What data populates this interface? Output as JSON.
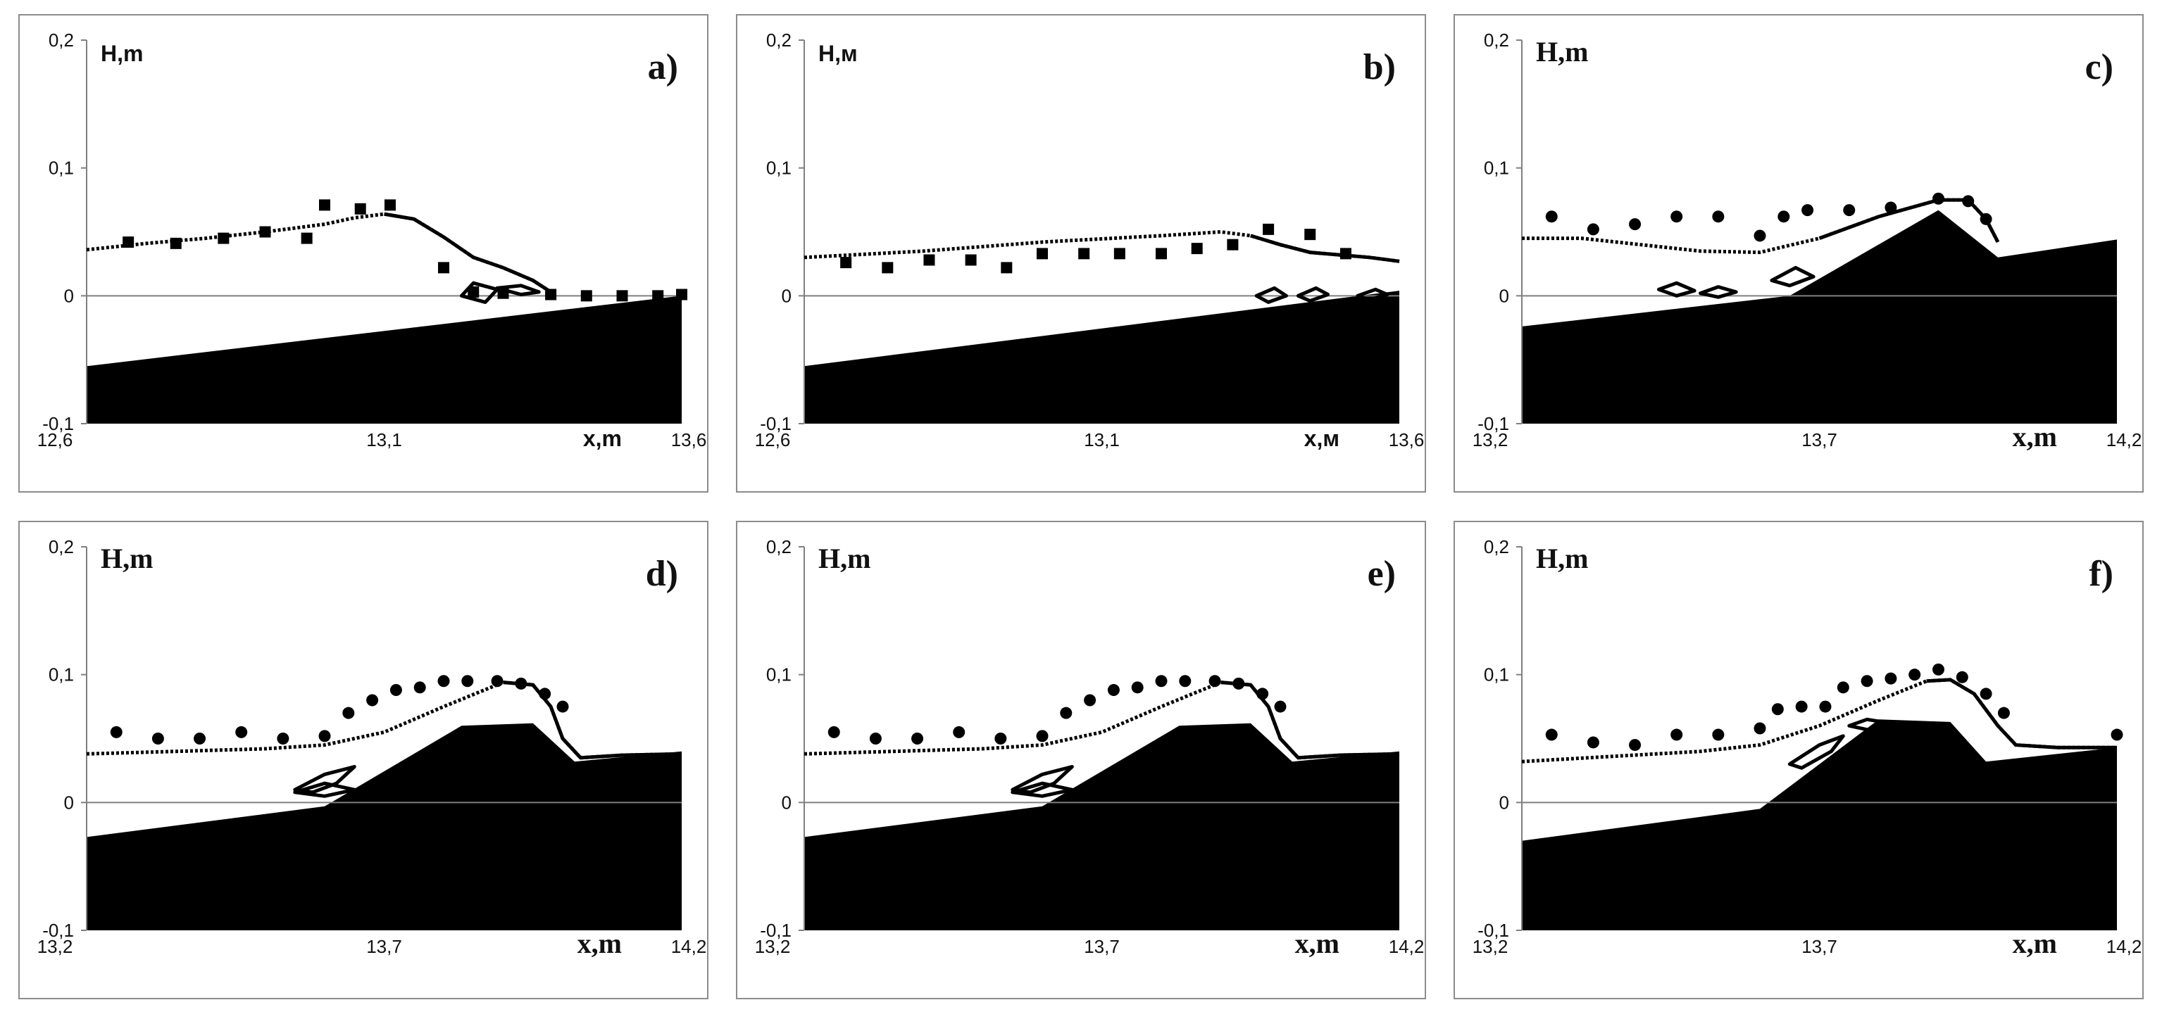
{
  "colors": {
    "ground": "#000000",
    "axis": "#7f7f7f",
    "text": "#111111",
    "marker": "#000000"
  },
  "chart_data": [
    {
      "type": "line",
      "panel_label": "a)",
      "ylabel": "H,m",
      "xlabel": "x,m",
      "title_style": "sans",
      "xlim": [
        12.6,
        13.6
      ],
      "ylim": [
        -0.1,
        0.2
      ],
      "x_ticks": [
        "12,6",
        "13,1",
        "13,6"
      ],
      "y_ticks": [
        "0,2",
        "0,1",
        "0",
        "-0,1"
      ],
      "marker": "square",
      "bottom": [
        [
          12.6,
          -0.055
        ],
        [
          13.6,
          0.0
        ]
      ],
      "computed_surface": [
        [
          12.6,
          0.036
        ],
        [
          12.7,
          0.041
        ],
        [
          12.8,
          0.045
        ],
        [
          12.9,
          0.05
        ],
        [
          13.0,
          0.056
        ],
        [
          13.05,
          0.061
        ],
        [
          13.1,
          0.064
        ],
        [
          13.15,
          0.06
        ],
        [
          13.2,
          0.046
        ],
        [
          13.25,
          0.03
        ],
        [
          13.3,
          0.022
        ],
        [
          13.35,
          0.012
        ],
        [
          13.38,
          0.003
        ]
      ],
      "bubbles": [
        [
          [
            13.23,
            0.0
          ],
          [
            13.25,
            0.01
          ],
          [
            13.29,
            0.005
          ],
          [
            13.27,
            -0.005
          ],
          [
            13.23,
            0.0
          ]
        ],
        [
          [
            13.29,
            0.006
          ],
          [
            13.33,
            0.008
          ],
          [
            13.36,
            0.003
          ],
          [
            13.33,
            0.001
          ],
          [
            13.29,
            0.006
          ]
        ]
      ],
      "experiment": [
        [
          12.67,
          0.042
        ],
        [
          12.75,
          0.041
        ],
        [
          12.83,
          0.045
        ],
        [
          12.9,
          0.05
        ],
        [
          12.97,
          0.045
        ],
        [
          13.0,
          0.071
        ],
        [
          13.06,
          0.068
        ],
        [
          13.11,
          0.071
        ],
        [
          13.2,
          0.022
        ],
        [
          13.25,
          0.003
        ],
        [
          13.3,
          0.002
        ],
        [
          13.38,
          0.001
        ],
        [
          13.44,
          0.0
        ],
        [
          13.5,
          0.0
        ],
        [
          13.56,
          0.0
        ],
        [
          13.6,
          0.001
        ]
      ]
    },
    {
      "type": "line",
      "panel_label": "b)",
      "ylabel": "H,м",
      "xlabel": "x,м",
      "title_style": "sans",
      "xlim": [
        12.6,
        13.6
      ],
      "ylim": [
        -0.1,
        0.2
      ],
      "x_ticks": [
        "12,6",
        "13,1",
        "13,6"
      ],
      "y_ticks": [
        "0,2",
        "0,1",
        "0",
        "-0,1"
      ],
      "marker": "square",
      "bottom": [
        [
          12.6,
          -0.055
        ],
        [
          13.6,
          0.004
        ]
      ],
      "computed_surface": [
        [
          12.6,
          0.03
        ],
        [
          12.8,
          0.035
        ],
        [
          13.0,
          0.042
        ],
        [
          13.2,
          0.047
        ],
        [
          13.3,
          0.05
        ],
        [
          13.35,
          0.047
        ],
        [
          13.4,
          0.04
        ],
        [
          13.45,
          0.034
        ],
        [
          13.5,
          0.032
        ],
        [
          13.55,
          0.03
        ],
        [
          13.6,
          0.027
        ]
      ],
      "bubbles": [
        [
          [
            13.36,
            0.0
          ],
          [
            13.39,
            0.006
          ],
          [
            13.41,
            0.0
          ],
          [
            13.38,
            -0.005
          ],
          [
            13.36,
            0.0
          ]
        ],
        [
          [
            13.43,
            0.0
          ],
          [
            13.46,
            0.006
          ],
          [
            13.48,
            0.001
          ],
          [
            13.45,
            -0.004
          ],
          [
            13.43,
            0.0
          ]
        ],
        [
          [
            13.53,
            0.0
          ],
          [
            13.56,
            0.005
          ],
          [
            13.58,
            0.001
          ],
          [
            13.55,
            -0.003
          ],
          [
            13.53,
            0.0
          ]
        ]
      ],
      "experiment": [
        [
          12.67,
          0.026
        ],
        [
          12.74,
          0.022
        ],
        [
          12.81,
          0.028
        ],
        [
          12.88,
          0.028
        ],
        [
          12.94,
          0.022
        ],
        [
          13.0,
          0.033
        ],
        [
          13.07,
          0.033
        ],
        [
          13.13,
          0.033
        ],
        [
          13.2,
          0.033
        ],
        [
          13.26,
          0.037
        ],
        [
          13.32,
          0.04
        ],
        [
          13.38,
          0.052
        ],
        [
          13.45,
          0.048
        ],
        [
          13.51,
          0.033
        ]
      ]
    },
    {
      "type": "line",
      "panel_label": "c)",
      "ylabel": "H,m",
      "xlabel": "x,m",
      "title_style": "serif",
      "xlim": [
        13.2,
        14.2
      ],
      "ylim": [
        -0.1,
        0.2
      ],
      "x_ticks": [
        "13,2",
        "13,7",
        "14,2"
      ],
      "y_ticks": [
        "0,2",
        "0,1",
        "0",
        "-0,1"
      ],
      "marker": "circle",
      "bottom": [
        [
          13.2,
          -0.024
        ],
        [
          13.65,
          0.0
        ],
        [
          13.9,
          0.067
        ],
        [
          14.0,
          0.03
        ],
        [
          14.2,
          0.044
        ]
      ],
      "computed_surface": [
        [
          13.2,
          0.045
        ],
        [
          13.3,
          0.045
        ],
        [
          13.4,
          0.04
        ],
        [
          13.5,
          0.035
        ],
        [
          13.6,
          0.034
        ],
        [
          13.7,
          0.045
        ],
        [
          13.8,
          0.062
        ],
        [
          13.9,
          0.075
        ],
        [
          13.95,
          0.075
        ],
        [
          13.98,
          0.06
        ],
        [
          14.0,
          0.042
        ]
      ],
      "bubbles": [
        [
          [
            13.43,
            0.005
          ],
          [
            13.46,
            0.01
          ],
          [
            13.49,
            0.004
          ],
          [
            13.46,
            0.0
          ],
          [
            13.43,
            0.005
          ]
        ],
        [
          [
            13.5,
            0.002
          ],
          [
            13.53,
            0.007
          ],
          [
            13.56,
            0.003
          ],
          [
            13.53,
            -0.001
          ],
          [
            13.5,
            0.002
          ]
        ],
        [
          [
            13.62,
            0.012
          ],
          [
            13.66,
            0.022
          ],
          [
            13.69,
            0.015
          ],
          [
            13.65,
            0.008
          ],
          [
            13.62,
            0.012
          ]
        ]
      ],
      "experiment": [
        [
          13.25,
          0.062
        ],
        [
          13.32,
          0.052
        ],
        [
          13.39,
          0.056
        ],
        [
          13.46,
          0.062
        ],
        [
          13.53,
          0.062
        ],
        [
          13.6,
          0.047
        ],
        [
          13.64,
          0.062
        ],
        [
          13.68,
          0.067
        ],
        [
          13.75,
          0.067
        ],
        [
          13.82,
          0.069
        ],
        [
          13.9,
          0.076
        ],
        [
          13.95,
          0.074
        ],
        [
          13.98,
          0.06
        ]
      ]
    },
    {
      "type": "line",
      "panel_label": "d)",
      "ylabel": "H,m",
      "xlabel": "x,m",
      "title_style": "serif",
      "xlim": [
        13.2,
        14.2
      ],
      "ylim": [
        -0.1,
        0.2
      ],
      "x_ticks": [
        "13,2",
        "13,7",
        "14,2"
      ],
      "y_ticks": [
        "0,2",
        "0,1",
        "0",
        "-0,1"
      ],
      "marker": "circle",
      "bottom": [
        [
          13.2,
          -0.027
        ],
        [
          13.6,
          -0.003
        ],
        [
          13.83,
          0.06
        ],
        [
          13.95,
          0.062
        ],
        [
          14.02,
          0.032
        ],
        [
          14.2,
          0.04
        ]
      ],
      "computed_surface": [
        [
          13.2,
          0.038
        ],
        [
          13.35,
          0.04
        ],
        [
          13.5,
          0.042
        ],
        [
          13.6,
          0.045
        ],
        [
          13.7,
          0.055
        ],
        [
          13.8,
          0.075
        ],
        [
          13.9,
          0.094
        ],
        [
          13.95,
          0.092
        ],
        [
          13.98,
          0.075
        ],
        [
          14.0,
          0.05
        ],
        [
          14.03,
          0.035
        ],
        [
          14.1,
          0.037
        ],
        [
          14.2,
          0.038
        ]
      ],
      "bubbles": [
        [
          [
            13.55,
            0.01
          ],
          [
            13.6,
            0.022
          ],
          [
            13.65,
            0.028
          ],
          [
            13.62,
            0.015
          ],
          [
            13.58,
            0.008
          ],
          [
            13.55,
            0.01
          ]
        ],
        [
          [
            13.55,
            0.008
          ],
          [
            13.6,
            0.015
          ],
          [
            13.65,
            0.01
          ],
          [
            13.6,
            0.005
          ],
          [
            13.55,
            0.008
          ]
        ]
      ],
      "experiment": [
        [
          13.25,
          0.055
        ],
        [
          13.32,
          0.05
        ],
        [
          13.39,
          0.05
        ],
        [
          13.46,
          0.055
        ],
        [
          13.53,
          0.05
        ],
        [
          13.6,
          0.052
        ],
        [
          13.64,
          0.07
        ],
        [
          13.68,
          0.08
        ],
        [
          13.72,
          0.088
        ],
        [
          13.76,
          0.09
        ],
        [
          13.8,
          0.095
        ],
        [
          13.84,
          0.095
        ],
        [
          13.89,
          0.095
        ],
        [
          13.93,
          0.093
        ],
        [
          13.97,
          0.085
        ],
        [
          14.0,
          0.075
        ]
      ]
    },
    {
      "type": "line",
      "panel_label": "e)",
      "ylabel": "H,m",
      "xlabel": "x,m",
      "title_style": "serif",
      "xlim": [
        13.2,
        14.2
      ],
      "ylim": [
        -0.1,
        0.2
      ],
      "x_ticks": [
        "13,2",
        "13,7",
        "14,2"
      ],
      "y_ticks": [
        "0,2",
        "0,1",
        "0",
        "-0,1"
      ],
      "marker": "circle",
      "bottom": [
        [
          13.2,
          -0.027
        ],
        [
          13.6,
          -0.003
        ],
        [
          13.83,
          0.06
        ],
        [
          13.95,
          0.062
        ],
        [
          14.02,
          0.032
        ],
        [
          14.2,
          0.04
        ]
      ],
      "computed_surface": [
        [
          13.2,
          0.038
        ],
        [
          13.35,
          0.04
        ],
        [
          13.5,
          0.042
        ],
        [
          13.6,
          0.045
        ],
        [
          13.7,
          0.055
        ],
        [
          13.8,
          0.075
        ],
        [
          13.9,
          0.094
        ],
        [
          13.95,
          0.092
        ],
        [
          13.98,
          0.075
        ],
        [
          14.0,
          0.05
        ],
        [
          14.03,
          0.035
        ],
        [
          14.1,
          0.037
        ],
        [
          14.2,
          0.038
        ]
      ],
      "bubbles": [
        [
          [
            13.55,
            0.01
          ],
          [
            13.6,
            0.022
          ],
          [
            13.65,
            0.028
          ],
          [
            13.62,
            0.015
          ],
          [
            13.58,
            0.008
          ],
          [
            13.55,
            0.01
          ]
        ],
        [
          [
            13.55,
            0.008
          ],
          [
            13.6,
            0.015
          ],
          [
            13.65,
            0.01
          ],
          [
            13.6,
            0.005
          ],
          [
            13.55,
            0.008
          ]
        ]
      ],
      "experiment": [
        [
          13.25,
          0.055
        ],
        [
          13.32,
          0.05
        ],
        [
          13.39,
          0.05
        ],
        [
          13.46,
          0.055
        ],
        [
          13.53,
          0.05
        ],
        [
          13.6,
          0.052
        ],
        [
          13.64,
          0.07
        ],
        [
          13.68,
          0.08
        ],
        [
          13.72,
          0.088
        ],
        [
          13.76,
          0.09
        ],
        [
          13.8,
          0.095
        ],
        [
          13.84,
          0.095
        ],
        [
          13.89,
          0.095
        ],
        [
          13.93,
          0.093
        ],
        [
          13.97,
          0.085
        ],
        [
          14.0,
          0.075
        ]
      ]
    },
    {
      "type": "line",
      "panel_label": "f)",
      "ylabel": "H,m",
      "xlabel": "x,m",
      "title_style": "serif",
      "xlim": [
        13.2,
        14.2
      ],
      "ylim": [
        -0.1,
        0.2
      ],
      "x_ticks": [
        "13,2",
        "13,7",
        "14,2"
      ],
      "y_ticks": [
        "0,2",
        "0,1",
        "0",
        "-0,1"
      ],
      "marker": "circle",
      "bottom": [
        [
          13.2,
          -0.03
        ],
        [
          13.6,
          -0.005
        ],
        [
          13.8,
          0.065
        ],
        [
          13.92,
          0.063
        ],
        [
          13.98,
          0.032
        ],
        [
          14.2,
          0.043
        ]
      ],
      "computed_surface": [
        [
          13.2,
          0.032
        ],
        [
          13.35,
          0.036
        ],
        [
          13.5,
          0.04
        ],
        [
          13.6,
          0.045
        ],
        [
          13.7,
          0.06
        ],
        [
          13.8,
          0.08
        ],
        [
          13.88,
          0.095
        ],
        [
          13.92,
          0.096
        ],
        [
          13.96,
          0.085
        ],
        [
          14.0,
          0.06
        ],
        [
          14.03,
          0.045
        ],
        [
          14.1,
          0.043
        ],
        [
          14.2,
          0.043
        ]
      ],
      "bubbles": [
        [
          [
            13.75,
            0.06
          ],
          [
            13.78,
            0.065
          ],
          [
            13.82,
            0.062
          ],
          [
            13.79,
            0.056
          ],
          [
            13.75,
            0.06
          ]
        ],
        [
          [
            13.65,
            0.03
          ],
          [
            13.7,
            0.045
          ],
          [
            13.74,
            0.052
          ],
          [
            13.72,
            0.04
          ],
          [
            13.67,
            0.027
          ],
          [
            13.65,
            0.03
          ]
        ]
      ],
      "experiment": [
        [
          13.25,
          0.053
        ],
        [
          13.32,
          0.047
        ],
        [
          13.39,
          0.045
        ],
        [
          13.46,
          0.053
        ],
        [
          13.53,
          0.053
        ],
        [
          13.6,
          0.058
        ],
        [
          13.63,
          0.073
        ],
        [
          13.67,
          0.075
        ],
        [
          13.71,
          0.075
        ],
        [
          13.74,
          0.09
        ],
        [
          13.78,
          0.095
        ],
        [
          13.82,
          0.097
        ],
        [
          13.86,
          0.1
        ],
        [
          13.9,
          0.104
        ],
        [
          13.94,
          0.098
        ],
        [
          13.98,
          0.085
        ],
        [
          14.01,
          0.07
        ],
        [
          14.2,
          0.053
        ]
      ]
    }
  ]
}
